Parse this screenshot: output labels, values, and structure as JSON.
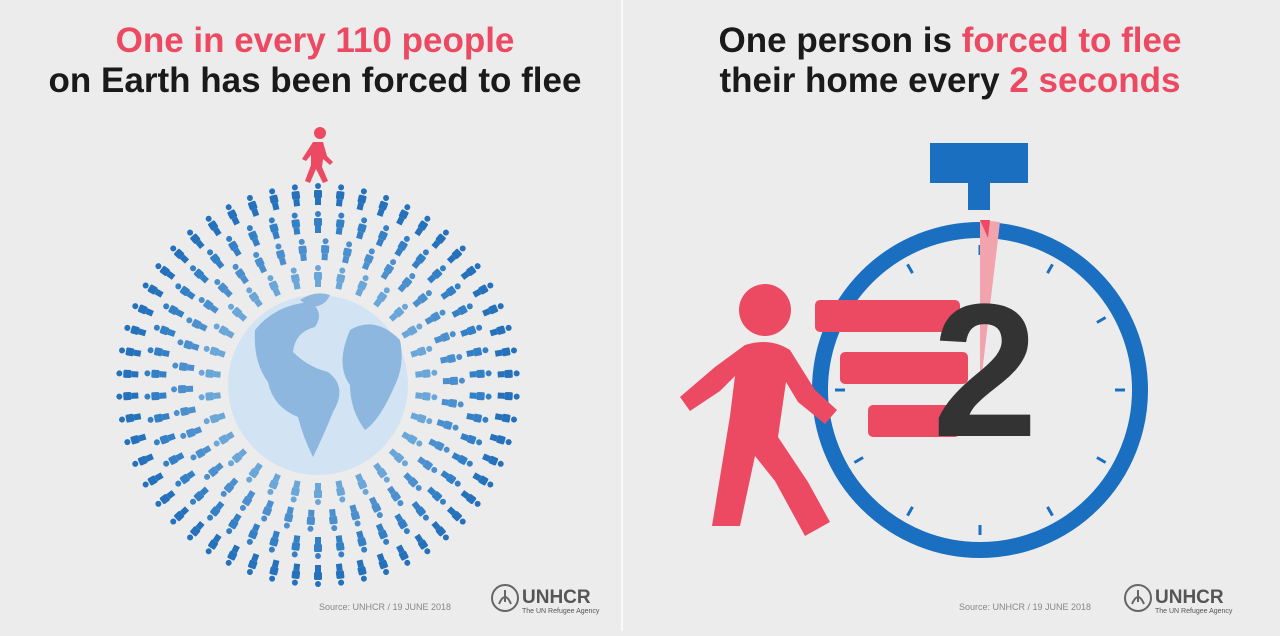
{
  "left": {
    "title_line1": "One in every 110 people",
    "title_line2": "on Earth has been forced to flee",
    "source": "Source: UNHCR / 19 JUNE 2018",
    "logo_name": "UNHCR",
    "logo_tagline": "The UN Refugee Agency"
  },
  "right": {
    "title_line1_a": "One person is",
    "title_line1_b": "forced to flee",
    "title_line2_a": "their home every",
    "title_line2_b": "2 seconds",
    "stopwatch_number": "2",
    "source": "Source: UNHCR / 19 JUNE 2018",
    "logo_name": "UNHCR",
    "logo_tagline": "The UN Refugee Agency"
  }
}
